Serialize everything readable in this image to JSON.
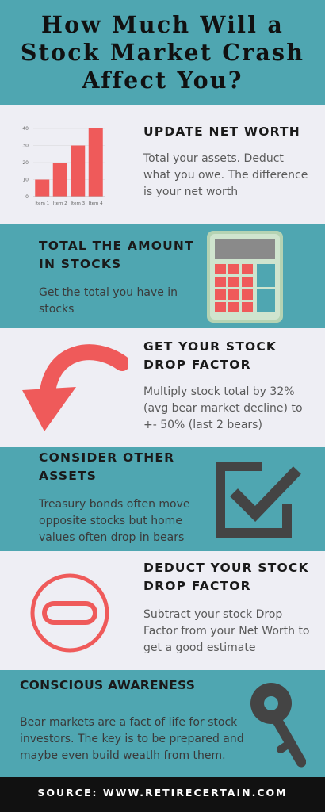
{
  "title": "How Much Will a\nStock Market Crash\nAffect You?",
  "sections": [
    {
      "heading": "UPDATE NET WORTH",
      "body": "Total your assets. Deduct what you owe. The difference is your net worth"
    },
    {
      "heading": "TOTAL THE AMOUNT IN STOCKS",
      "body": "Get the total you have in stocks"
    },
    {
      "heading": "GET YOUR STOCK DROP FACTOR",
      "body": "Multiply stock total by 32% (avg bear market decline) to +- 50% (last 2 bears)"
    },
    {
      "heading": "CONSIDER OTHER ASSETS",
      "body": "Treasury bonds often move opposite stocks but home values often drop in bears"
    },
    {
      "heading": "DEDUCT YOUR STOCK DROP FACTOR",
      "body": "Subtract your stock Drop Factor from your Net Worth to get a good estimate"
    },
    {
      "heading": "CONSCIOUS AWARENESS",
      "body": "Bear markets are a fact of life for stock investors. The key is to be prepared and maybe even  build weatlh from them."
    }
  ],
  "footer": "SOURCE: WWW.RETIRECERTAIN.COM",
  "icons": [
    "bar-chart-icon",
    "calculator-icon",
    "curved-arrow-icon",
    "checkbox-icon",
    "minus-circle-icon",
    "key-icon"
  ],
  "colors": {
    "teal": "#4fa6b1",
    "light": "#eeeef4",
    "red": "#ef5a5a",
    "dark": "#4a4a4a"
  },
  "chart_data": {
    "type": "bar",
    "categories": [
      "Item 1",
      "Item 2",
      "Item 3",
      "Item 4"
    ],
    "values": [
      10,
      20,
      30,
      40
    ],
    "ylim": [
      0,
      40
    ],
    "yticks": [
      0,
      10,
      20,
      30,
      40
    ],
    "color": "#ef5a5a"
  }
}
